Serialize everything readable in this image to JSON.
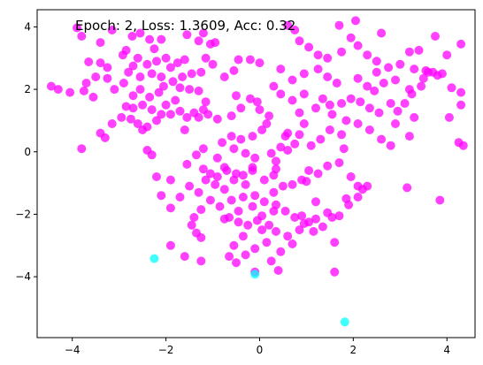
{
  "chart_data": {
    "type": "scatter",
    "title": "",
    "xlabel": "",
    "ylabel": "",
    "annotation": "Epoch: 2, Loss: 1.3609, Acc: 0.32",
    "xlim": [
      -4.75,
      4.6
    ],
    "ylim": [
      -5.95,
      4.55
    ],
    "xticks": [
      -4,
      -2,
      0,
      2,
      4
    ],
    "yticks": [
      -4,
      -2,
      0,
      2,
      4
    ],
    "grid": false,
    "series": [
      {
        "color": "#ff00ff",
        "alpha": 0.75,
        "points": [
          [
            -3.9,
            3.97
          ],
          [
            -3.8,
            3.7
          ],
          [
            -3.15,
            3.9
          ],
          [
            -3.65,
            2.88
          ],
          [
            -3.4,
            2.85
          ],
          [
            -3.25,
            2.7
          ],
          [
            -2.92,
            3.1
          ],
          [
            -2.72,
            3.7
          ],
          [
            -2.55,
            3.8
          ],
          [
            -2.35,
            3.6
          ],
          [
            -2.25,
            3.3
          ],
          [
            -2.1,
            3.6
          ],
          [
            -2.6,
            3.0
          ],
          [
            -2.4,
            2.8
          ],
          [
            -2.3,
            2.5
          ],
          [
            -2.55,
            2.4
          ],
          [
            -2.8,
            2.55
          ],
          [
            -2.2,
            2.9
          ],
          [
            -2.0,
            3.0
          ],
          [
            -1.9,
            2.7
          ],
          [
            -1.75,
            2.85
          ],
          [
            -1.6,
            2.95
          ],
          [
            -1.55,
            3.75
          ],
          [
            -1.3,
            3.55
          ],
          [
            -1.2,
            3.8
          ],
          [
            -1.05,
            3.45
          ],
          [
            -0.95,
            3.5
          ],
          [
            -1.0,
            2.8
          ],
          [
            -1.25,
            2.55
          ],
          [
            -1.45,
            2.5
          ],
          [
            -1.65,
            2.4
          ],
          [
            -1.85,
            2.25
          ],
          [
            -2.05,
            2.1
          ],
          [
            -2.15,
            1.9
          ],
          [
            -2.35,
            1.75
          ],
          [
            -2.55,
            2.0
          ],
          [
            -2.7,
            1.8
          ],
          [
            -2.9,
            2.2
          ],
          [
            -3.1,
            2.0
          ],
          [
            -3.25,
            2.35
          ],
          [
            -3.5,
            2.4
          ],
          [
            -3.7,
            2.2
          ],
          [
            -3.75,
            1.95
          ],
          [
            -3.55,
            1.75
          ],
          [
            -4.05,
            1.9
          ],
          [
            -4.3,
            2.0
          ],
          [
            -4.45,
            2.1
          ],
          [
            -2.5,
            1.5
          ],
          [
            -2.7,
            1.4
          ],
          [
            -2.85,
            1.45
          ],
          [
            -2.95,
            1.1
          ],
          [
            -2.3,
            1.35
          ],
          [
            -2.1,
            1.2
          ],
          [
            -2.0,
            1.5
          ],
          [
            -1.8,
            1.65
          ],
          [
            -1.7,
            1.3
          ],
          [
            -1.55,
            1.1
          ],
          [
            -1.4,
            1.25
          ],
          [
            -1.2,
            1.35
          ],
          [
            -1.15,
            1.6
          ],
          [
            -1.3,
            1.95
          ],
          [
            -1.5,
            2.0
          ],
          [
            -1.7,
            2.05
          ],
          [
            -1.9,
            1.2
          ],
          [
            -2.2,
            1.0
          ],
          [
            -2.4,
            0.8
          ],
          [
            -2.5,
            0.7
          ],
          [
            -2.75,
            1.05
          ],
          [
            -2.6,
            0.9
          ],
          [
            -3.3,
            0.45
          ],
          [
            -3.4,
            0.6
          ],
          [
            -3.15,
            0.9
          ],
          [
            -3.8,
            0.1
          ],
          [
            -2.4,
            0.05
          ],
          [
            -2.3,
            -0.1
          ],
          [
            -2.2,
            -0.8
          ],
          [
            -1.9,
            -0.9
          ],
          [
            -1.6,
            0.7
          ],
          [
            -1.3,
            1.1
          ],
          [
            -1.1,
            1.2
          ],
          [
            -0.9,
            1.05
          ],
          [
            -0.6,
            1.15
          ],
          [
            -0.4,
            1.4
          ],
          [
            -0.2,
            1.7
          ],
          [
            -0.5,
            1.8
          ],
          [
            -0.75,
            2.4
          ],
          [
            -0.55,
            2.6
          ],
          [
            -0.45,
            2.95
          ],
          [
            -0.2,
            2.95
          ],
          [
            0.0,
            2.85
          ],
          [
            -0.05,
            1.6
          ],
          [
            0.0,
            1.35
          ],
          [
            0.2,
            1.15
          ],
          [
            0.15,
            0.9
          ],
          [
            0.05,
            0.7
          ],
          [
            -0.15,
            0.5
          ],
          [
            -0.4,
            0.4
          ],
          [
            -0.6,
            0.5
          ],
          [
            -0.8,
            0.3
          ],
          [
            -0.55,
            0.1
          ],
          [
            -0.3,
            -0.05
          ],
          [
            -0.1,
            -0.2
          ],
          [
            0.25,
            -0.05
          ],
          [
            0.35,
            -0.3
          ],
          [
            0.45,
            0.15
          ],
          [
            0.6,
            0.6
          ],
          [
            0.85,
            0.55
          ],
          [
            0.95,
            0.9
          ],
          [
            0.85,
            1.25
          ],
          [
            1.2,
            1.4
          ],
          [
            1.35,
            1.7
          ],
          [
            1.5,
            1.5
          ],
          [
            1.55,
            1.2
          ],
          [
            1.75,
            1.55
          ],
          [
            1.95,
            1.7
          ],
          [
            2.15,
            1.6
          ],
          [
            2.35,
            1.4
          ],
          [
            2.55,
            1.25
          ],
          [
            2.8,
            1.55
          ],
          [
            2.95,
            1.3
          ],
          [
            3.1,
            1.55
          ],
          [
            3.25,
            1.85
          ],
          [
            3.45,
            2.1
          ],
          [
            3.55,
            2.6
          ],
          [
            3.3,
            2.65
          ],
          [
            3.0,
            2.8
          ],
          [
            2.75,
            2.7
          ],
          [
            2.5,
            2.9
          ],
          [
            2.3,
            3.1
          ],
          [
            2.1,
            3.4
          ],
          [
            1.95,
            3.65
          ],
          [
            1.75,
            3.2
          ],
          [
            1.45,
            3.0
          ],
          [
            1.25,
            3.1
          ],
          [
            1.05,
            3.35
          ],
          [
            0.85,
            3.55
          ],
          [
            0.75,
            3.9
          ],
          [
            0.6,
            4.05
          ],
          [
            1.7,
            4.05
          ],
          [
            2.05,
            4.2
          ],
          [
            2.6,
            3.8
          ],
          [
            3.75,
            3.7
          ],
          [
            4.3,
            3.45
          ],
          [
            3.4,
            3.25
          ],
          [
            3.2,
            3.2
          ],
          [
            3.6,
            2.55
          ],
          [
            3.8,
            2.45
          ],
          [
            4.1,
            2.05
          ],
          [
            4.3,
            1.9
          ],
          [
            4.05,
            1.1
          ],
          [
            4.25,
            0.3
          ],
          [
            4.35,
            0.2
          ],
          [
            4.3,
            1.5
          ],
          [
            3.2,
            0.5
          ],
          [
            2.8,
            0.2
          ],
          [
            2.35,
            0.7
          ],
          [
            2.1,
            0.9
          ],
          [
            1.85,
            1.0
          ],
          [
            1.75,
            0.55
          ],
          [
            1.5,
            0.7
          ],
          [
            1.3,
            0.4
          ],
          [
            1.1,
            0.2
          ],
          [
            0.75,
            0.25
          ],
          [
            0.55,
            0.5
          ],
          [
            1.8,
            0.1
          ],
          [
            1.7,
            -0.35
          ],
          [
            1.45,
            -0.45
          ],
          [
            1.25,
            -0.7
          ],
          [
            1.05,
            -0.6
          ],
          [
            0.9,
            -0.9
          ],
          [
            0.7,
            -1.05
          ],
          [
            0.5,
            -1.1
          ],
          [
            0.3,
            -1.3
          ],
          [
            0.1,
            -0.9
          ],
          [
            -0.15,
            -0.5
          ],
          [
            -0.35,
            -0.75
          ],
          [
            -0.55,
            -0.9
          ],
          [
            -0.75,
            -1.2
          ],
          [
            -0.95,
            -1.05
          ],
          [
            -1.15,
            -0.9
          ],
          [
            -1.3,
            -1.3
          ],
          [
            -1.5,
            -1.1
          ],
          [
            -1.7,
            -1.45
          ],
          [
            -1.9,
            -1.8
          ],
          [
            -2.1,
            -1.4
          ],
          [
            -1.55,
            -0.4
          ],
          [
            -1.35,
            -0.1
          ],
          [
            -1.2,
            0.1
          ],
          [
            -0.9,
            -0.2
          ],
          [
            -0.75,
            -0.5
          ],
          [
            -0.5,
            -0.7
          ],
          [
            -0.3,
            -1.05
          ],
          [
            -0.1,
            -1.4
          ],
          [
            0.1,
            -1.6
          ],
          [
            0.3,
            -1.9
          ],
          [
            -0.05,
            -2.2
          ],
          [
            -0.25,
            -2.35
          ],
          [
            -0.45,
            -2.25
          ],
          [
            -0.65,
            -2.1
          ],
          [
            -0.85,
            -1.75
          ],
          [
            -1.05,
            -1.55
          ],
          [
            -1.25,
            -1.85
          ],
          [
            -1.4,
            -2.1
          ],
          [
            -1.45,
            -2.35
          ],
          [
            -1.35,
            -2.6
          ],
          [
            -0.75,
            -2.15
          ],
          [
            -0.6,
            -1.55
          ],
          [
            -0.35,
            -1.45
          ],
          [
            -0.15,
            -1.75
          ],
          [
            0.05,
            -2.05
          ],
          [
            0.2,
            -2.35
          ],
          [
            0.35,
            -2.55
          ],
          [
            0.15,
            -2.9
          ],
          [
            -0.1,
            -3.1
          ],
          [
            -0.3,
            -3.3
          ],
          [
            -0.55,
            -3.0
          ],
          [
            -0.65,
            -3.35
          ],
          [
            -0.5,
            -3.55
          ],
          [
            -0.1,
            -3.85
          ],
          [
            0.25,
            -3.5
          ],
          [
            0.4,
            -3.8
          ],
          [
            0.45,
            -3.2
          ],
          [
            0.6,
            -2.7
          ],
          [
            0.85,
            -2.5
          ],
          [
            1.05,
            -2.25
          ],
          [
            1.2,
            -2.15
          ],
          [
            1.45,
            -1.95
          ],
          [
            1.7,
            -2.05
          ],
          [
            1.9,
            -1.7
          ],
          [
            2.1,
            -1.45
          ],
          [
            2.2,
            -1.2
          ],
          [
            2.1,
            -1.1
          ],
          [
            1.85,
            -1.5
          ],
          [
            1.55,
            -2.1
          ],
          [
            1.35,
            -2.4
          ],
          [
            1.15,
            -2.55
          ],
          [
            1.6,
            -2.9
          ],
          [
            1.6,
            -3.85
          ],
          [
            0.95,
            -2.3
          ],
          [
            0.75,
            -2.1
          ],
          [
            0.55,
            -1.9
          ],
          [
            0.35,
            -1.7
          ],
          [
            2.3,
            -1.1
          ],
          [
            1.95,
            -0.8
          ],
          [
            2.6,
            0.4
          ],
          [
            2.9,
            0.9
          ],
          [
            3.3,
            1.1
          ],
          [
            3.9,
            2.5
          ],
          [
            3.7,
            2.55
          ],
          [
            3.5,
            2.35
          ],
          [
            4.0,
            3.1
          ],
          [
            3.15,
            -1.15
          ],
          [
            3.85,
            -1.55
          ],
          [
            2.45,
            1.95
          ],
          [
            2.65,
            2.2
          ],
          [
            2.3,
            2.1
          ],
          [
            2.1,
            2.35
          ],
          [
            2.5,
            2.55
          ],
          [
            2.9,
            2.3
          ],
          [
            3.2,
            2.0
          ],
          [
            1.65,
            2.2
          ],
          [
            1.45,
            2.4
          ],
          [
            1.25,
            2.65
          ],
          [
            0.95,
            2.5
          ],
          [
            0.7,
            2.3
          ],
          [
            0.45,
            2.65
          ],
          [
            0.3,
            2.1
          ],
          [
            0.45,
            1.85
          ],
          [
            0.7,
            1.65
          ],
          [
            0.95,
            1.85
          ],
          [
            0.6,
            0.05
          ],
          [
            -2.7,
            2.75
          ],
          [
            -2.85,
            3.25
          ],
          [
            -3.4,
            3.5
          ],
          [
            -2.1,
            2.4
          ],
          [
            -1.15,
            3.0
          ],
          [
            -0.15,
            -0.6
          ],
          [
            -0.9,
            -0.8
          ],
          [
            -1.2,
            -0.55
          ],
          [
            -1.9,
            -3.0
          ],
          [
            -1.25,
            -3.5
          ],
          [
            -0.35,
            -2.7
          ],
          [
            0.05,
            -2.5
          ],
          [
            -1.25,
            -2.75
          ],
          [
            -1.6,
            -3.35
          ],
          [
            0.7,
            -2.95
          ],
          [
            1.2,
            -1.6
          ],
          [
            -0.45,
            -1.9
          ],
          [
            -0.7,
            -0.6
          ],
          [
            -1.05,
            -0.7
          ],
          [
            1.0,
            -0.95
          ],
          [
            0.35,
            -0.55
          ],
          [
            0.3,
            -0.75
          ],
          [
            0.9,
            -2.05
          ]
        ]
      },
      {
        "color": "#00ffff",
        "alpha": 0.75,
        "points": [
          [
            -2.25,
            -3.42
          ],
          [
            -0.1,
            -3.92
          ],
          [
            1.82,
            -5.45
          ]
        ]
      }
    ]
  }
}
